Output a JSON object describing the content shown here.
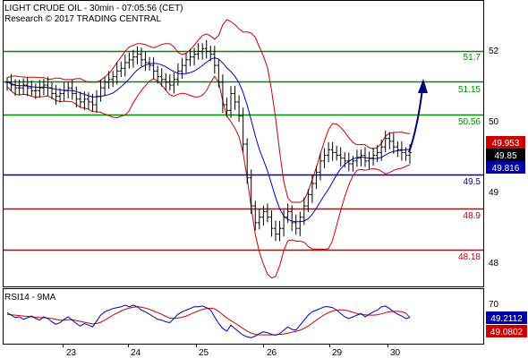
{
  "header": {
    "title": "LIGHT CRUDE OIL - 30min - 07:05:56 (CET)",
    "copyright": "Research © 2017 TRADING CENTRAL"
  },
  "colors": {
    "candle": "#000000",
    "bollinger": "#cc0000",
    "moving_average": "#0000cc",
    "support_resistance_green": "#008800",
    "pivot_blue": "#0000aa",
    "support_red": "#cc0000",
    "forecast_arrow": "#000080",
    "rsi_line": "#0000aa",
    "rsi_signal": "#cc0000",
    "price_tag_red": "#cc0000",
    "price_tag_blue": "#0000aa",
    "price_tag_black": "#000000"
  },
  "chart_data": [
    {
      "type": "candlestick",
      "title": "LIGHT CRUDE OIL - 30min - 07:05:56 (CET)",
      "x_tick_labels": [
        "23",
        "24",
        "25",
        "26",
        "29",
        "30"
      ],
      "y_tick_labels": [
        "52",
        "50",
        "49",
        "48"
      ],
      "ylim": [
        47.5,
        52.5
      ],
      "grid": false,
      "levels": [
        {
          "value": 51.7,
          "label": "51.7",
          "color": "#008800"
        },
        {
          "value": 51.15,
          "label": "51.15",
          "color": "#008800"
        },
        {
          "value": 50.56,
          "label": "50.56",
          "color": "#008800"
        },
        {
          "value": 49.5,
          "label": "49.5",
          "color": "#0000aa"
        },
        {
          "value": 48.9,
          "label": "48.9",
          "color": "#cc0000"
        },
        {
          "value": 48.18,
          "label": "48.18",
          "color": "#cc0000"
        }
      ],
      "price_tags": [
        {
          "value": 49.953,
          "label": "49.953",
          "color": "#cc0000"
        },
        {
          "value": 49.85,
          "label": "49.85",
          "color": "#000000"
        },
        {
          "value": 49.816,
          "label": "49.816",
          "color": "#0000aa"
        }
      ],
      "forecast": {
        "from": 49.9,
        "to": 51.15
      },
      "close_series": [
        51.1,
        51.05,
        51.0,
        51.0,
        51.05,
        51.0,
        50.95,
        50.95,
        51.0,
        51.05,
        51.0,
        50.9,
        50.85,
        50.9,
        50.95,
        51.0,
        50.9,
        50.8,
        50.75,
        50.8,
        50.75,
        50.7,
        50.85,
        51.0,
        51.1,
        51.15,
        51.2,
        51.3,
        51.35,
        51.45,
        51.5,
        51.55,
        51.6,
        51.5,
        51.45,
        51.4,
        51.3,
        51.2,
        51.15,
        51.1,
        51.05,
        51.15,
        51.3,
        51.4,
        51.5,
        51.55,
        51.6,
        51.65,
        51.7,
        51.65,
        51.6,
        51.4,
        51.1,
        50.7,
        50.6,
        50.9,
        50.75,
        50.5,
        50.0,
        49.4,
        48.9,
        48.6,
        48.7,
        48.8,
        48.7,
        48.5,
        48.4,
        48.5,
        48.7,
        48.8,
        48.6,
        48.5,
        48.7,
        48.9,
        49.1,
        49.3,
        49.5,
        49.7,
        49.8,
        49.9,
        49.85,
        49.8,
        49.75,
        49.7,
        49.65,
        49.7,
        49.75,
        49.8,
        49.7,
        49.75,
        49.8,
        49.85,
        49.95,
        50.1,
        50.05,
        49.95,
        49.9,
        49.85,
        49.8,
        49.85
      ],
      "candle_range": 0.15
    },
    {
      "type": "line",
      "title": "RSI14 - 9MA",
      "y_tick_labels": [
        "70",
        "30"
      ],
      "ylim": [
        20,
        80
      ],
      "grid": false,
      "value_tags": [
        {
          "value": 49.2112,
          "label": "49.2112",
          "color": "#0000aa"
        },
        {
          "value": 49.0802,
          "label": "49.0802",
          "color": "#cc0000"
        }
      ],
      "series": [
        {
          "values": [
            55,
            52,
            49,
            50,
            47,
            49,
            51,
            48,
            46,
            50,
            48,
            44,
            41,
            43,
            47,
            50,
            46,
            42,
            39,
            42,
            40,
            38,
            45,
            52,
            56,
            58,
            60,
            61,
            62,
            64,
            62,
            64,
            62,
            58,
            56,
            53,
            50,
            47,
            46,
            44,
            43,
            48,
            53,
            56,
            58,
            60,
            62,
            62,
            63,
            61,
            58,
            50,
            42,
            36,
            33,
            40,
            36,
            32,
            28,
            26,
            25,
            27,
            30,
            32,
            31,
            29,
            28,
            30,
            34,
            38,
            35,
            34,
            40,
            46,
            52,
            56,
            58,
            60,
            62,
            62,
            61,
            58,
            54,
            50,
            48,
            50,
            52,
            54,
            50,
            53,
            56,
            58,
            62,
            63,
            60,
            56,
            53,
            51,
            48,
            49.2
          ]
        },
        {
          "values": [
            53,
            52.5,
            52,
            51.5,
            51,
            50.5,
            50,
            49.5,
            49,
            49,
            48.5,
            48,
            47,
            46,
            46,
            46.5,
            46.5,
            45.5,
            44.5,
            43.5,
            42.5,
            41.5,
            42,
            43.5,
            46,
            49,
            52,
            54.5,
            57,
            59,
            60.5,
            61.5,
            62,
            61.5,
            60.5,
            59,
            57,
            55,
            53,
            50.5,
            48.5,
            48,
            48.5,
            49.5,
            51,
            53,
            55,
            57,
            59,
            60,
            60.5,
            59.5,
            56.5,
            52.5,
            48.5,
            45.5,
            42.5,
            39.5,
            36,
            33,
            30.5,
            29,
            28.5,
            28.5,
            28.5,
            28.5,
            28.5,
            29,
            29.5,
            30.5,
            31.5,
            32.5,
            34,
            36,
            39,
            42.5,
            46,
            49.5,
            52.5,
            55,
            57,
            58,
            58.5,
            58,
            57,
            55.5,
            54,
            53,
            52.5,
            52,
            52,
            52.5,
            53.5,
            55,
            56,
            56.5,
            56.5,
            56,
            54.5,
            49.1
          ]
        }
      ]
    }
  ]
}
